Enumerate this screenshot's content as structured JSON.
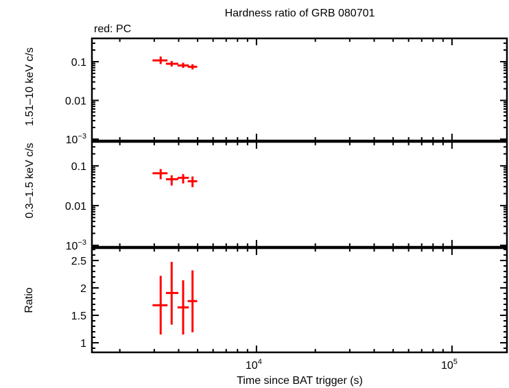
{
  "chart_data": {
    "type": "scatter",
    "title": "Hardness ratio of GRB 080701",
    "legend_note": "red: PC",
    "xlabel": "Time since BAT trigger (s)",
    "x_scale": "log",
    "xlim": [
      1440,
      191000
    ],
    "x_tick_labels": [
      {
        "value": 10000,
        "base": "10",
        "exp": "4"
      },
      {
        "value": 100000,
        "base": "10",
        "exp": "5"
      }
    ],
    "series_color": "#ff0000",
    "x": [
      3236,
      3683,
      4217,
      4709
    ],
    "x_err_low": [
      2940,
      3442,
      3946,
      4447
    ],
    "x_err_high": [
      3508,
      3983,
      4509,
      4976
    ],
    "panels": [
      {
        "ylabel": "1.51–10 keV c/s",
        "y_scale": "log",
        "ylim": [
          0.00092,
          0.4
        ],
        "y_ticks": [
          {
            "value": 0.1,
            "label": "0.1"
          },
          {
            "value": 0.01,
            "label": "0.01"
          },
          {
            "value": 0.001,
            "label": "10",
            "exp": "−3"
          }
        ],
        "values": [
          0.108,
          0.0885,
          0.08,
          0.074
        ],
        "err_low": [
          0.087,
          0.075,
          0.069,
          0.063
        ],
        "err_high": [
          0.136,
          0.104,
          0.094,
          0.086
        ]
      },
      {
        "ylabel": "0.3–1.5 keV c/s",
        "y_scale": "log",
        "ylim": [
          0.00092,
          0.4
        ],
        "y_ticks": [
          {
            "value": 0.1,
            "label": "0.1"
          },
          {
            "value": 0.01,
            "label": "0.01"
          },
          {
            "value": 0.001,
            "label": "10",
            "exp": "−3"
          }
        ],
        "values": [
          0.065,
          0.046,
          0.05,
          0.041
        ],
        "err_low": [
          0.046,
          0.032,
          0.036,
          0.029
        ],
        "err_high": [
          0.083,
          0.058,
          0.062,
          0.054
        ]
      },
      {
        "ylabel": "Ratio",
        "y_scale": "linear",
        "ylim": [
          0.825,
          2.725
        ],
        "y_ticks": [
          {
            "value": 1,
            "label": "1"
          },
          {
            "value": 1.5,
            "label": "1.5"
          },
          {
            "value": 2,
            "label": "2"
          },
          {
            "value": 2.5,
            "label": "2.5"
          }
        ],
        "values": [
          1.684,
          1.908,
          1.646,
          1.76
        ],
        "err_low": [
          1.15,
          1.33,
          1.15,
          1.19
        ],
        "err_high": [
          2.22,
          2.475,
          2.14,
          2.32
        ]
      }
    ]
  }
}
